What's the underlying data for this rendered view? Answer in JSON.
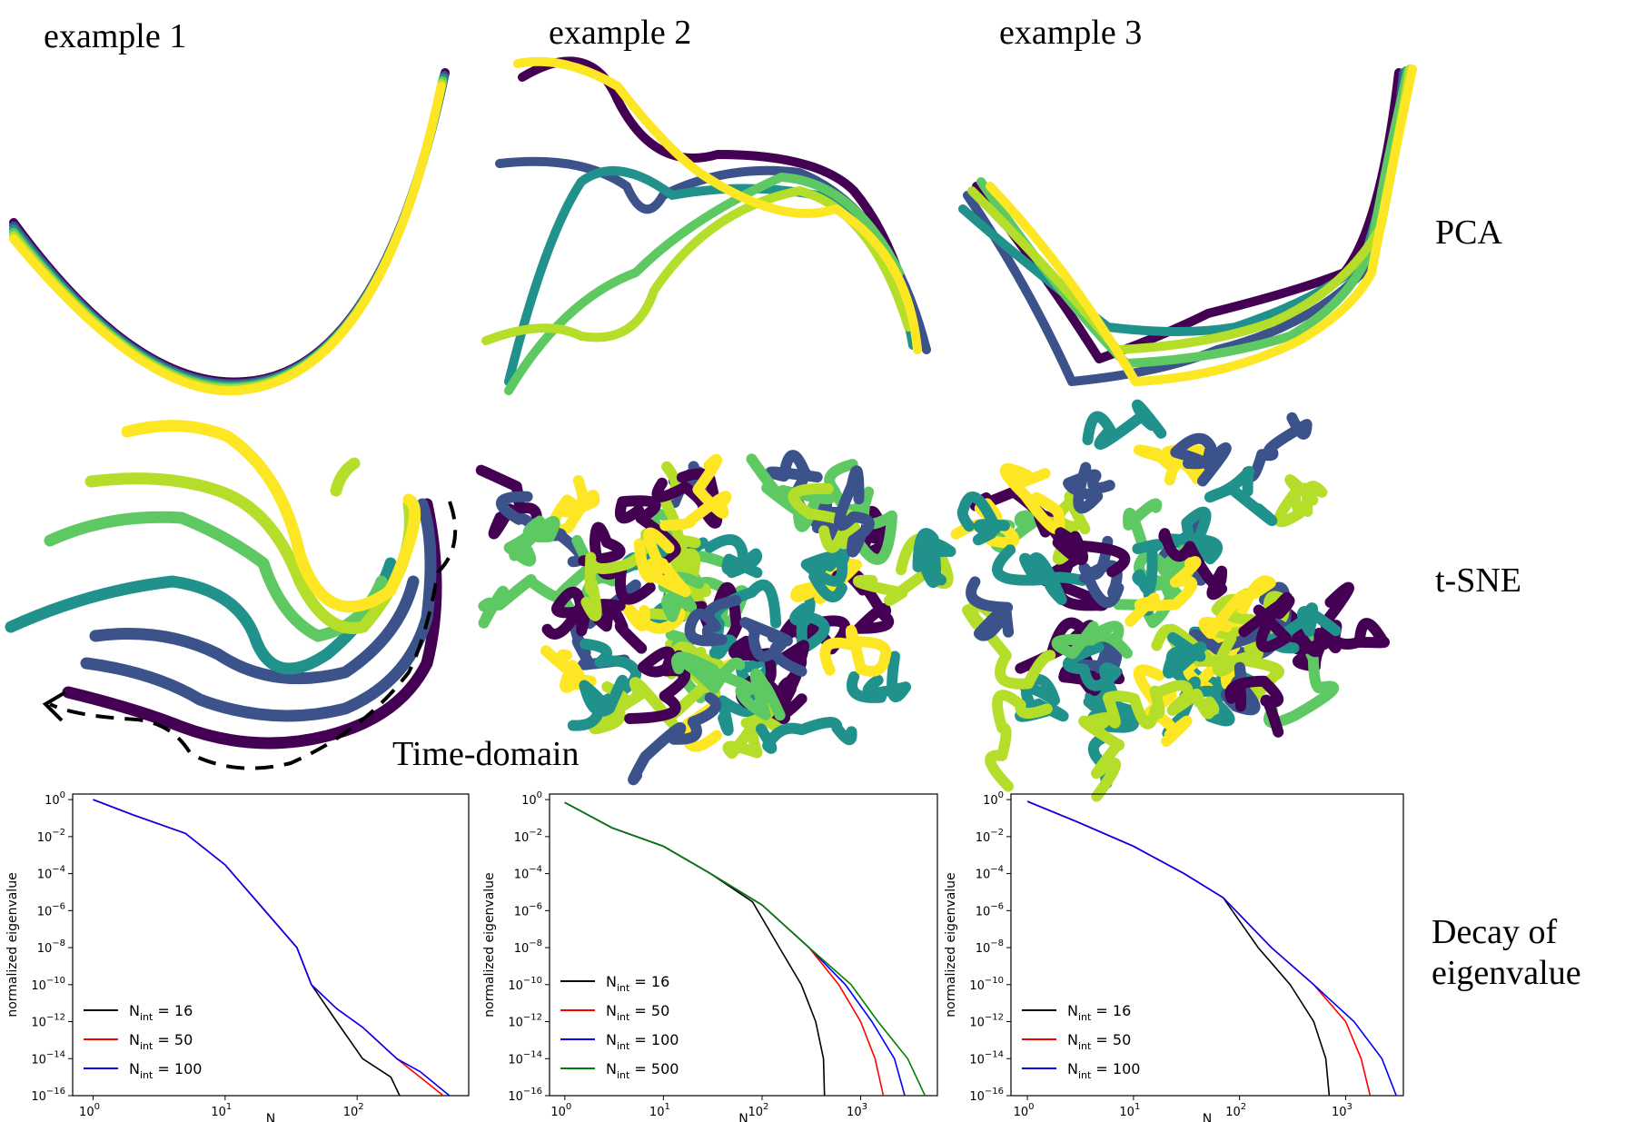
{
  "column_titles": [
    "example 1",
    "example 2",
    "example 3"
  ],
  "row_labels": {
    "pca": "PCA",
    "tsne": "t-SNE",
    "decay_line1": "Decay of",
    "decay_line2": "eigenvalue"
  },
  "annotation": "Time-domain",
  "colors": {
    "viridis": [
      "#440154",
      "#3b528b",
      "#21918c",
      "#5ec962",
      "#b5de2b",
      "#fde725"
    ],
    "n16": "#000000",
    "n50": "#ff0000",
    "n100": "#0000ff",
    "n500": "#008000"
  },
  "chart_data": [
    {
      "type": "line",
      "panel": "example 1",
      "xlabel": "N",
      "ylabel": "normalized eigenvalue",
      "x_scale": "log",
      "y_scale": "log",
      "xlim": [
        0.7,
        700
      ],
      "ylim": [
        1e-16,
        2
      ],
      "x_ticks": [
        "10^0",
        "10^1",
        "10^2"
      ],
      "y_ticks": [
        "10^0",
        "10^-2",
        "10^-4",
        "10^-6",
        "10^-8",
        "10^-10",
        "10^-12",
        "10^-14",
        "10^-16"
      ],
      "legend_position": "lower-left",
      "series": [
        {
          "name": "N_int = 16",
          "color_key": "n16",
          "x": [
            1,
            2,
            5,
            10,
            20,
            35,
            45,
            70,
            110,
            180,
            210
          ],
          "y": [
            1,
            0.15,
            0.015,
            0.0003,
            1e-06,
            1e-08,
            1e-10,
            1e-12,
            1e-14,
            1e-15,
            1e-16
          ]
        },
        {
          "name": "N_int = 50",
          "color_key": "n50",
          "x": [
            1,
            2,
            5,
            10,
            20,
            35,
            45,
            70,
            110,
            200,
            300,
            450
          ],
          "y": [
            1,
            0.15,
            0.015,
            0.0003,
            1e-06,
            1e-08,
            1e-10,
            5e-12,
            5e-13,
            1e-14,
            1e-15,
            1e-16
          ]
        },
        {
          "name": "N_int = 100",
          "color_key": "n100",
          "x": [
            1,
            2,
            5,
            10,
            20,
            35,
            45,
            70,
            110,
            200,
            300,
            500
          ],
          "y": [
            1,
            0.15,
            0.015,
            0.0003,
            1e-06,
            1e-08,
            1e-10,
            5e-12,
            5e-13,
            1e-14,
            2e-15,
            1e-16
          ]
        }
      ]
    },
    {
      "type": "line",
      "panel": "example 2",
      "xlabel": "N",
      "ylabel": "normalized eigenvalue",
      "x_scale": "log",
      "y_scale": "log",
      "xlim": [
        0.7,
        6000
      ],
      "ylim": [
        1e-16,
        2
      ],
      "x_ticks": [
        "10^0",
        "10^1",
        "10^2",
        "10^3"
      ],
      "y_ticks": [
        "10^0",
        "10^-2",
        "10^-4",
        "10^-6",
        "10^-8",
        "10^-10",
        "10^-12",
        "10^-14",
        "10^-16"
      ],
      "legend_position": "lower-left",
      "series": [
        {
          "name": "N_int = 16",
          "color_key": "n16",
          "x": [
            1,
            3,
            10,
            30,
            80,
            150,
            250,
            350,
            420,
            430
          ],
          "y": [
            0.7,
            0.03,
            0.003,
            0.0001,
            3e-06,
            1e-08,
            1e-10,
            1e-12,
            1e-14,
            1e-16
          ]
        },
        {
          "name": "N_int = 50",
          "color_key": "n50",
          "x": [
            1,
            3,
            10,
            30,
            100,
            300,
            600,
            1000,
            1400,
            1700
          ],
          "y": [
            0.7,
            0.03,
            0.003,
            0.0001,
            2e-06,
            1e-08,
            1e-10,
            1e-12,
            1e-14,
            1e-16
          ]
        },
        {
          "name": "N_int = 100",
          "color_key": "n100",
          "x": [
            1,
            3,
            10,
            30,
            100,
            300,
            700,
            1300,
            2200,
            2800
          ],
          "y": [
            0.7,
            0.03,
            0.003,
            0.0001,
            2e-06,
            1e-08,
            1e-10,
            1e-12,
            1e-14,
            1e-16
          ]
        },
        {
          "name": "N_int = 500",
          "color_key": "n500",
          "x": [
            1,
            3,
            10,
            30,
            100,
            300,
            800,
            1500,
            3000,
            4500
          ],
          "y": [
            0.7,
            0.03,
            0.003,
            0.0001,
            2e-06,
            1e-08,
            1e-10,
            1e-12,
            1e-14,
            1e-16
          ]
        }
      ]
    },
    {
      "type": "line",
      "panel": "example 3",
      "xlabel": "N",
      "ylabel": "normalized eigenvalue",
      "x_scale": "log",
      "y_scale": "log",
      "xlim": [
        0.7,
        3500
      ],
      "ylim": [
        1e-16,
        2
      ],
      "x_ticks": [
        "10^0",
        "10^1",
        "10^2",
        "10^3"
      ],
      "y_ticks": [
        "10^0",
        "10^-2",
        "10^-4",
        "10^-6",
        "10^-8",
        "10^-10",
        "10^-12",
        "10^-14",
        "10^-16"
      ],
      "legend_position": "lower-left",
      "series": [
        {
          "name": "N_int = 16",
          "color_key": "n16",
          "x": [
            1,
            3,
            10,
            30,
            70,
            150,
            300,
            500,
            650,
            700
          ],
          "y": [
            0.8,
            0.06,
            0.003,
            0.0001,
            5e-06,
            1e-08,
            1e-10,
            1e-12,
            1e-14,
            1e-16
          ]
        },
        {
          "name": "N_int = 50",
          "color_key": "n50",
          "x": [
            1,
            3,
            10,
            30,
            70,
            200,
            500,
            1000,
            1400,
            1700
          ],
          "y": [
            0.8,
            0.06,
            0.003,
            0.0001,
            5e-06,
            1e-08,
            1e-10,
            1e-12,
            1e-14,
            1e-16
          ]
        },
        {
          "name": "N_int = 100",
          "color_key": "n100",
          "x": [
            1,
            3,
            10,
            30,
            70,
            200,
            500,
            1200,
            2200,
            3000
          ],
          "y": [
            0.8,
            0.06,
            0.003,
            0.0001,
            5e-06,
            1e-08,
            1e-10,
            1e-12,
            1e-14,
            1e-16
          ]
        }
      ]
    }
  ]
}
